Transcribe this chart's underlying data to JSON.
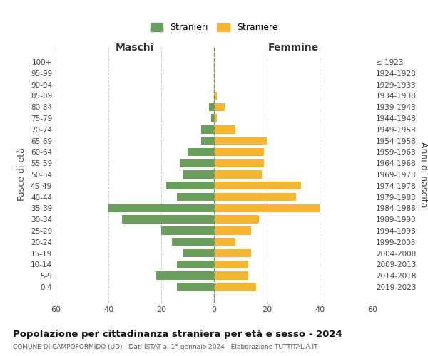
{
  "age_groups": [
    "100+",
    "95-99",
    "90-94",
    "85-89",
    "80-84",
    "75-79",
    "70-74",
    "65-69",
    "60-64",
    "55-59",
    "50-54",
    "45-49",
    "40-44",
    "35-39",
    "30-34",
    "25-29",
    "20-24",
    "15-19",
    "10-14",
    "5-9",
    "0-4"
  ],
  "birth_years": [
    "≤ 1923",
    "1924-1928",
    "1929-1933",
    "1934-1938",
    "1939-1943",
    "1944-1948",
    "1949-1953",
    "1954-1958",
    "1959-1963",
    "1964-1968",
    "1969-1973",
    "1974-1978",
    "1979-1983",
    "1984-1988",
    "1989-1993",
    "1994-1998",
    "1999-2003",
    "2004-2008",
    "2009-2013",
    "2014-2018",
    "2019-2023"
  ],
  "males": [
    0,
    0,
    0,
    0,
    2,
    1,
    5,
    5,
    10,
    13,
    12,
    18,
    14,
    40,
    35,
    20,
    16,
    12,
    14,
    22,
    14
  ],
  "females": [
    0,
    0,
    0,
    1,
    4,
    1,
    8,
    20,
    19,
    19,
    18,
    33,
    31,
    40,
    17,
    14,
    8,
    14,
    13,
    13,
    16
  ],
  "male_color": "#6a9e5c",
  "female_color": "#f5b731",
  "background_color": "#ffffff",
  "grid_color": "#cccccc",
  "xlim": 60,
  "title": "Popolazione per cittadinanza straniera per età e sesso - 2024",
  "subtitle": "COMUNE DI CAMPOFORMIDO (UD) - Dati ISTAT al 1° gennaio 2024 - Elaborazione TUTTITALIA.IT",
  "left_label": "Maschi",
  "right_label": "Femmine",
  "left_axis_label": "Fasce di età",
  "right_axis_label": "Anni di nascita",
  "legend_stranieri": "Stranieri",
  "legend_straniere": "Straniere"
}
